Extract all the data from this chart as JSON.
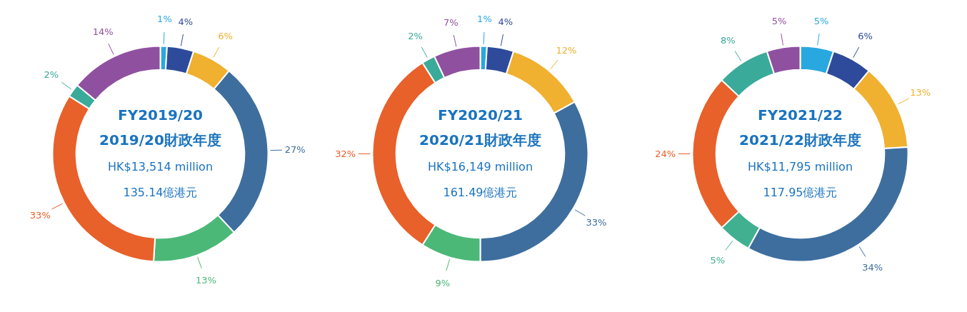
{
  "chart_data": [
    {
      "type": "donut",
      "title": "FY2019/20",
      "subtitle": "2019/20財政年度",
      "annotations": [
        "HK$13,514 million",
        "135.14億港元"
      ],
      "categories": [
        null,
        null,
        null,
        null,
        null,
        null,
        null,
        null
      ],
      "values": [
        1,
        4,
        6,
        27,
        13,
        33,
        2,
        14
      ],
      "value_labels": [
        "1%",
        "4%",
        "6%",
        "27%",
        "13%",
        "33%",
        "2%",
        "14%"
      ],
      "colors": [
        "#29a8e0",
        "#2e4a9a",
        "#f0b030",
        "#3d6e9e",
        "#4cb878",
        "#e8602a",
        "#3aaa9a",
        "#9050a0"
      ]
    },
    {
      "type": "donut",
      "title": "FY2020/21",
      "subtitle": "2020/21財政年度",
      "annotations": [
        "HK$16,149 million",
        "161.49億港元"
      ],
      "categories": [
        null,
        null,
        null,
        null,
        null,
        null,
        null,
        null
      ],
      "values": [
        1,
        4,
        12,
        33,
        9,
        32,
        2,
        7
      ],
      "value_labels": [
        "1%",
        "4%",
        "12%",
        "33%",
        "9%",
        "32%",
        "2%",
        "7%"
      ],
      "colors": [
        "#29a8e0",
        "#2e4a9a",
        "#f0b030",
        "#3d6e9e",
        "#4cb878",
        "#e8602a",
        "#3aaa9a",
        "#9050a0"
      ]
    },
    {
      "type": "donut",
      "title": "FY2021/22",
      "subtitle": "2021/22財政年度",
      "annotations": [
        "HK$11,795 million",
        "117.95億港元"
      ],
      "categories": [
        null,
        null,
        null,
        null,
        null,
        null,
        null,
        null
      ],
      "values": [
        5,
        6,
        13,
        34,
        5,
        24,
        8,
        5
      ],
      "value_labels": [
        "5%",
        "6%",
        "13%",
        "34%",
        "5%",
        "24%",
        "8%",
        "5%"
      ],
      "colors": [
        "#29a8e0",
        "#2e4a9a",
        "#f0b030",
        "#3d6e9e",
        "#40b090",
        "#e8602a",
        "#3aaa9a",
        "#9050a0"
      ]
    }
  ]
}
